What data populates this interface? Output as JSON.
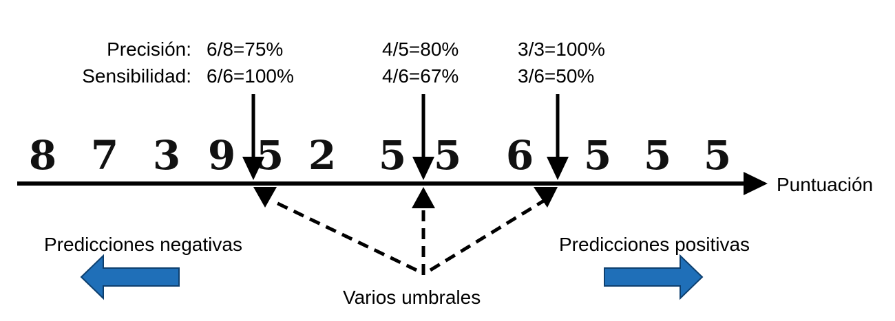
{
  "row_labels": {
    "precision": "Precisión:",
    "sensitivity": "Sensibilidad:"
  },
  "thresholds": [
    {
      "precision": "6/8=75%",
      "sensitivity": "6/6=100%"
    },
    {
      "precision": "4/5=80%",
      "sensitivity": "4/6=67%"
    },
    {
      "precision": "3/3=100%",
      "sensitivity": "3/6=50%"
    }
  ],
  "digits": [
    "8",
    "7",
    "3",
    "9",
    "5",
    "2",
    "5",
    "5",
    "6",
    "5",
    "5",
    "5"
  ],
  "axis_label": "Puntuación",
  "negative_label": "Predicciones negativas",
  "positive_label": "Predicciones positivas",
  "thresholds_label": "Varios umbrales",
  "colors": {
    "arrow_fill": "#1f6fb8",
    "arrow_stroke": "#0d3f6e"
  }
}
